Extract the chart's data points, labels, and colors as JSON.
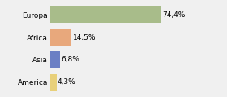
{
  "categories": [
    "Europa",
    "Africa",
    "Asia",
    "America"
  ],
  "values": [
    74.4,
    14.5,
    6.8,
    4.3
  ],
  "labels": [
    "74,4%",
    "14,5%",
    "6,8%",
    "4,3%"
  ],
  "bar_colors": [
    "#a8bc8a",
    "#e8a87c",
    "#6b7fc4",
    "#e8d07a"
  ],
  "background_color": "#f0f0f0",
  "xlim": [
    0,
    100
  ],
  "label_fontsize": 6.5,
  "tick_fontsize": 6.5,
  "bar_height": 0.75
}
